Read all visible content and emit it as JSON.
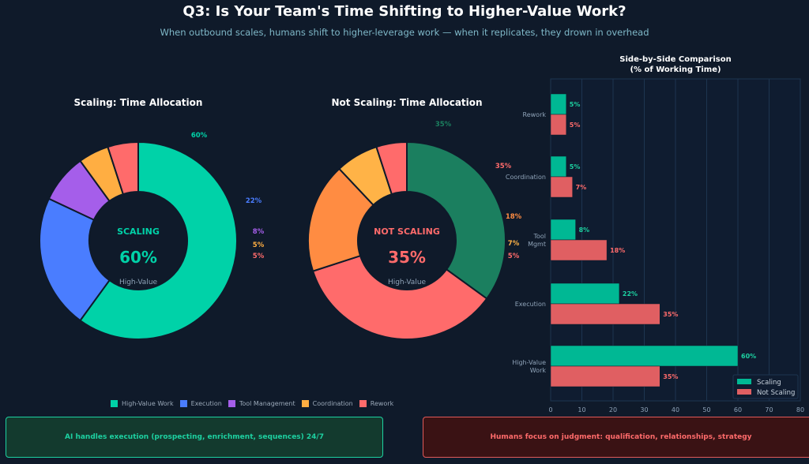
{
  "header": {
    "title": "Q3: Is Your Team's Time Shifting to Higher-Value Work?",
    "subtitle": "When outbound scales, humans shift to higher-leverage work — when it replicates, they drown in overhead"
  },
  "chart_data": [
    {
      "type": "pie",
      "title": "Scaling: Time Allocation",
      "donut": true,
      "categories": [
        "High-Value Work",
        "Execution",
        "Tool Management",
        "Coordination",
        "Rework"
      ],
      "values": [
        60,
        22,
        8,
        5,
        5
      ],
      "colors": [
        "#00d2a8",
        "#4a7dff",
        "#a55eea",
        "#ffae42",
        "#ff6b6b"
      ],
      "center": {
        "label": "SCALING",
        "value": "60%",
        "sublabel": "High-Value",
        "color": "#00d2a8"
      }
    },
    {
      "type": "pie",
      "title": "Not Scaling: Time Allocation",
      "donut": true,
      "categories": [
        "High-Value Work",
        "Execution",
        "Tool Management",
        "Coordination",
        "Rework"
      ],
      "values": [
        35,
        35,
        18,
        7,
        5
      ],
      "colors": [
        "#1b7f5f",
        "#ff6b6b",
        "#ff8c42",
        "#ffb347",
        "#ff6b6b"
      ],
      "center": {
        "label": "NOT SCALING",
        "value": "35%",
        "sublabel": "High-Value",
        "color": "#ff6b6b"
      }
    },
    {
      "type": "bar",
      "orientation": "horizontal",
      "title": "Side-by-Side Comparison",
      "title2": "(% of Working Time)",
      "categories": [
        "Rework",
        "Coordination",
        "Tool Mgmt",
        "Execution",
        "High-Value Work"
      ],
      "category_lines": [
        [
          "Rework"
        ],
        [
          "Coordination"
        ],
        [
          "Tool",
          "Mgmt"
        ],
        [
          "Execution"
        ],
        [
          "High-Value",
          "Work"
        ]
      ],
      "series": [
        {
          "name": "Scaling",
          "values": [
            5,
            5,
            8,
            22,
            60
          ],
          "color": "#00b894"
        },
        {
          "name": "Not Scaling",
          "values": [
            5,
            7,
            18,
            35,
            35
          ],
          "color": "#e05f62"
        }
      ],
      "xlabel": "% of Working Time",
      "xlim": [
        0,
        80
      ],
      "xticks": [
        0,
        10,
        20,
        30,
        40,
        50,
        60,
        70,
        80
      ],
      "grid": true,
      "legend": "bottom-right"
    }
  ],
  "legend": {
    "items": [
      "High-Value Work",
      "Execution",
      "Tool Management",
      "Coordination",
      "Rework"
    ],
    "colors": [
      "#00d2a8",
      "#4a7dff",
      "#a55eea",
      "#ffae42",
      "#ff6b6b"
    ]
  },
  "callouts": {
    "left": "AI handles execution (prospecting, enrichment, sequences) 24/7",
    "right": "Humans focus on judgment: qualification, relationships, strategy"
  }
}
